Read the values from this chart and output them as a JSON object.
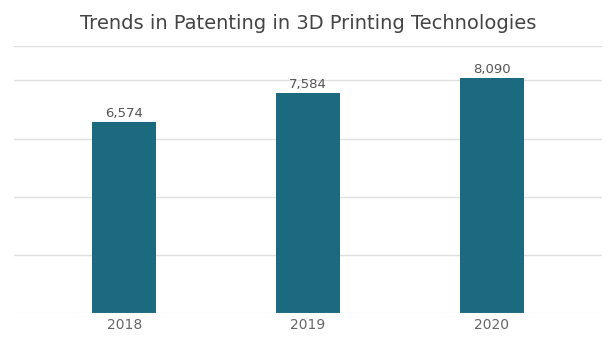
{
  "title": "Trends in Patenting in 3D Printing Technologies",
  "categories": [
    "2018",
    "2019",
    "2020"
  ],
  "values": [
    6574,
    7584,
    8090
  ],
  "labels": [
    "6,574",
    "7,584",
    "8,090"
  ],
  "bar_color": "#1b6a80",
  "background_color": "#ffffff",
  "ylim": [
    0,
    9200
  ],
  "bar_width": 0.35,
  "title_fontsize": 14,
  "label_fontsize": 9.5,
  "tick_fontsize": 10,
  "grid_color": "#e0e0e0",
  "grid_linewidth": 1.0,
  "bottom_line_color": "#cccccc"
}
